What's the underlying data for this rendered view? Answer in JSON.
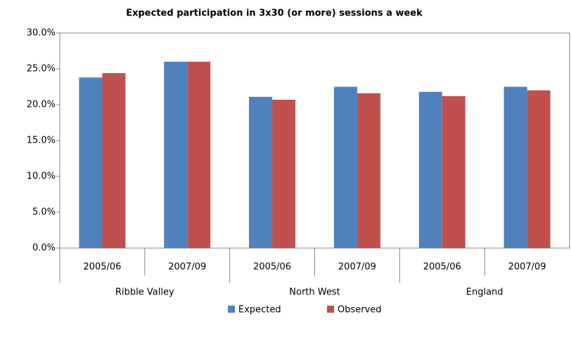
{
  "chart_data": {
    "type": "bar",
    "title": "Expected participation  in 3x30 (or more) sessions a week",
    "categories": [
      "2005/06",
      "2007/09",
      "2005/06",
      "2007/09",
      "2005/06",
      "2007/09"
    ],
    "groups": [
      "Ribble Valley",
      "North West",
      "England"
    ],
    "series": [
      {
        "name": "Expected",
        "color": "#4f81bd",
        "values": [
          23.8,
          26.0,
          21.1,
          22.5,
          21.8,
          22.5
        ]
      },
      {
        "name": "Observed",
        "color": "#c0504d",
        "values": [
          24.4,
          26.0,
          20.7,
          21.6,
          21.2,
          22.0
        ]
      }
    ],
    "ylim": [
      0,
      30
    ],
    "yticks": [
      {
        "value": 0,
        "label": "0.0%"
      },
      {
        "value": 5,
        "label": "5.0%"
      },
      {
        "value": 10,
        "label": "10.0%"
      },
      {
        "value": 15,
        "label": "15.0%"
      },
      {
        "value": 20,
        "label": "20.0%"
      },
      {
        "value": 25,
        "label": "25.0%"
      },
      {
        "value": 30,
        "label": "30.0%"
      }
    ],
    "grid": false,
    "legend": "bottom"
  }
}
